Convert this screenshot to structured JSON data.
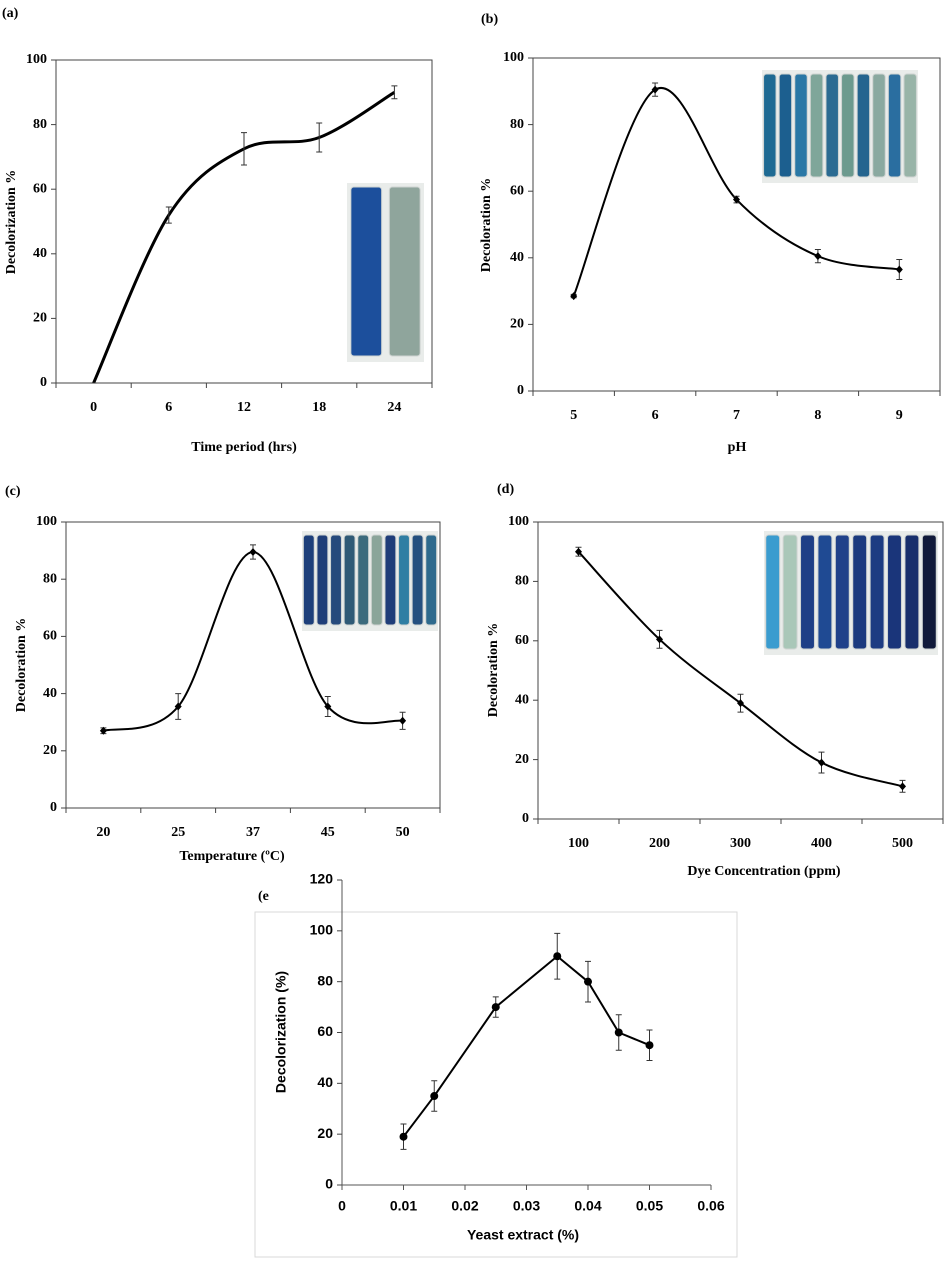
{
  "chart_data": [
    {
      "type": "line",
      "title": "(a)",
      "x_label": "Time period (hrs)",
      "y_label": "Decolorization  %",
      "categories": [
        "0",
        "6",
        "12",
        "18",
        "24"
      ],
      "values": [
        0,
        52,
        72.5,
        76,
        90
      ],
      "errors": [
        0,
        2.5,
        5,
        4.5,
        2
      ],
      "color": "#000000",
      "smooth": true,
      "marker": "none",
      "ylim": [
        0,
        100
      ],
      "yticks": [
        0,
        20,
        40,
        60,
        80,
        100
      ]
    },
    {
      "type": "line",
      "title": "(b)",
      "x_label": "pH",
      "y_label": "Decoloration  %",
      "categories": [
        "5",
        "6",
        "7",
        "8",
        "9"
      ],
      "values": [
        28.5,
        90.5,
        57.5,
        40.5,
        36.5
      ],
      "errors": [
        0.5,
        2,
        1,
        2,
        3
      ],
      "color": "#000000",
      "smooth": true,
      "marker": "diamond",
      "ylim": [
        0,
        100
      ],
      "yticks": [
        0,
        20,
        40,
        60,
        80,
        100
      ]
    },
    {
      "type": "line",
      "title": "(c)",
      "x_label": "Temperature (ºC)",
      "y_label": "Decoloration  %",
      "categories": [
        "20",
        "25",
        "37",
        "45",
        "50"
      ],
      "values": [
        27,
        35.5,
        89.5,
        35.5,
        30.5
      ],
      "errors": [
        1,
        4.5,
        2.5,
        3.5,
        3
      ],
      "color": "#000000",
      "smooth": true,
      "marker": "diamond",
      "ylim": [
        0,
        100
      ],
      "yticks": [
        0,
        20,
        40,
        60,
        80,
        100
      ]
    },
    {
      "type": "line",
      "title": "(d)",
      "x_label": "Dye Concentration (ppm)",
      "y_label": "Decoloration  %",
      "categories": [
        "100",
        "200",
        "300",
        "400",
        "500"
      ],
      "values": [
        90,
        60.5,
        39,
        19,
        11
      ],
      "errors": [
        1.5,
        3,
        3,
        3.5,
        2
      ],
      "color": "#000000",
      "smooth": true,
      "marker": "diamond",
      "ylim": [
        0,
        100
      ],
      "yticks": [
        0,
        20,
        40,
        60,
        80,
        100
      ]
    },
    {
      "type": "scatter-line",
      "title": "(e",
      "x_label": "Yeast extract (%)",
      "y_label": "Decolorization (%)",
      "x": [
        0.01,
        0.015,
        0.025,
        0.035,
        0.04,
        0.045,
        0.05
      ],
      "values": [
        19,
        35,
        70,
        90,
        80,
        60,
        55
      ],
      "errors": [
        5,
        6,
        4,
        9,
        8,
        7,
        6
      ],
      "color": "#000000",
      "smooth": false,
      "marker": "circle",
      "xlim": [
        0,
        0.06
      ],
      "xticks": [
        0,
        0.01,
        0.02,
        0.03,
        0.04,
        0.05,
        0.06
      ],
      "ylim": [
        0,
        120
      ],
      "yticks": [
        0,
        20,
        40,
        60,
        80,
        100,
        120
      ]
    }
  ]
}
